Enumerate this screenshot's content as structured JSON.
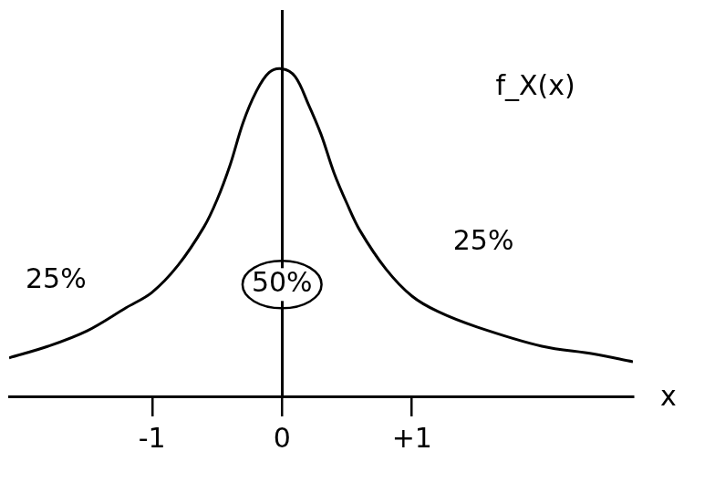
{
  "chart_data": {
    "type": "line",
    "x": [
      -2.1,
      -1.8,
      -1.5,
      -1.2,
      -1.0,
      -0.8,
      -0.6,
      -0.5,
      -0.4,
      -0.3,
      -0.2,
      -0.1,
      0,
      0.1,
      0.2,
      0.3,
      0.4,
      0.5,
      0.6,
      0.8,
      1.0,
      1.2,
      1.5,
      2.0,
      2.4,
      2.7
    ],
    "values": [
      0.1,
      0.13,
      0.17,
      0.23,
      0.27,
      0.34,
      0.44,
      0.51,
      0.6,
      0.71,
      0.79,
      0.84,
      0.85,
      0.83,
      0.76,
      0.68,
      0.58,
      0.5,
      0.43,
      0.33,
      0.26,
      0.22,
      0.18,
      0.13,
      0.11,
      0.09
    ],
    "color": "#000000",
    "xlim": [
      -2.1,
      2.7
    ],
    "xticks": [
      -1,
      0,
      {
        "value": 1,
        "label": "+1"
      }
    ],
    "ylim": [
      0,
      1
    ],
    "x_label": "x",
    "tick_labels": "x",
    "grid": false,
    "annotations": [
      {
        "text": "25%",
        "x": -1.74,
        "y": 0.3
      },
      {
        "text": "50%",
        "x": 0,
        "y": 0.29
      },
      {
        "text": "25%",
        "x": 1.55,
        "y": 0.4
      },
      {
        "text": "f_X(x)",
        "x": 1.95,
        "y": 0.8
      }
    ]
  }
}
